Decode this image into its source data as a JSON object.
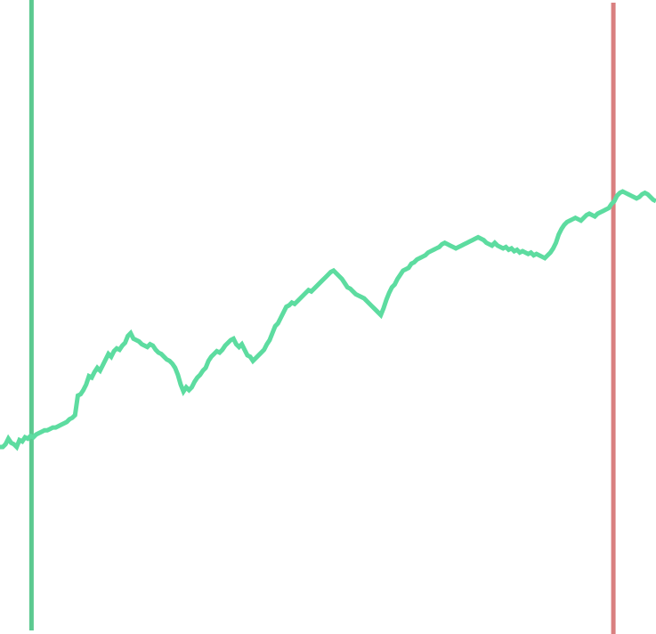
{
  "chart_data": {
    "type": "line",
    "title": "",
    "xlabel": "",
    "ylabel": "",
    "grid": false,
    "legend": "none",
    "colors": {
      "series": "#5ddca0",
      "start_marker": "#5cc990",
      "end_marker": "#d98080"
    },
    "series": [
      {
        "values": [
          108,
          108,
          110,
          114,
          111,
          110,
          108,
          113,
          112,
          115,
          114,
          116,
          115,
          117,
          118,
          119,
          120,
          120,
          121,
          122,
          122,
          123,
          124,
          125,
          126,
          128,
          129,
          131,
          145,
          146,
          149,
          153,
          159,
          158,
          162,
          165,
          163,
          167,
          171,
          175,
          173,
          177,
          179,
          178,
          181,
          183,
          188,
          190,
          186,
          185,
          184,
          182,
          181,
          180,
          182,
          181,
          178,
          176,
          175,
          173,
          171,
          170,
          168,
          165,
          160,
          153,
          148,
          151,
          149,
          151,
          155,
          158,
          160,
          163,
          165,
          170,
          173,
          175,
          177,
          176,
          178,
          181,
          183,
          185,
          186,
          182,
          180,
          182,
          178,
          174,
          173,
          170,
          172,
          174,
          176,
          178,
          182,
          185,
          190,
          195,
          197,
          201,
          205,
          209,
          210,
          212,
          211,
          213,
          215,
          217,
          219,
          221,
          220,
          222,
          224,
          226,
          228,
          230,
          232,
          234,
          235,
          233,
          231,
          229,
          226,
          223,
          222,
          220,
          218,
          217,
          216,
          215,
          213,
          211,
          209,
          207,
          205,
          203,
          208,
          214,
          219,
          223,
          225,
          229,
          232,
          235,
          236,
          237,
          240,
          241,
          243,
          244,
          245,
          246,
          248,
          249,
          250,
          251,
          252,
          254,
          255,
          254,
          253,
          252,
          251,
          252,
          253,
          254,
          255,
          256,
          257,
          258,
          259,
          258,
          257,
          255,
          254,
          253,
          255,
          253,
          252,
          251,
          252,
          250,
          251,
          249,
          250,
          248,
          249,
          248,
          247,
          248,
          246,
          247,
          246,
          245,
          244,
          246,
          248,
          251,
          255,
          261,
          265,
          268,
          270,
          271,
          272,
          273,
          272,
          271,
          273,
          275,
          276,
          275,
          274,
          276,
          277,
          278,
          279,
          280,
          283,
          285,
          289,
          291,
          292,
          291,
          290,
          289,
          288,
          287,
          288,
          290,
          291,
          290,
          288,
          286,
          285
        ]
      }
    ],
    "markers": [
      {
        "position": 0.048,
        "kind": "start"
      },
      {
        "position": 0.935,
        "kind": "end"
      }
    ]
  }
}
